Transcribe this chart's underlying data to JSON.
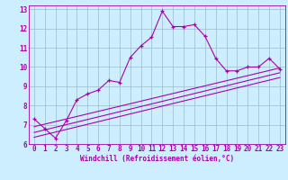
{
  "xlabel": "Windchill (Refroidissement éolien,°C)",
  "bg_color": "#cceeff",
  "line_color": "#aa00aa",
  "grid_color": "#99bbcc",
  "xlim": [
    -0.5,
    23.5
  ],
  "ylim": [
    6,
    13.2
  ],
  "xticks": [
    0,
    1,
    2,
    3,
    4,
    5,
    6,
    7,
    8,
    9,
    10,
    11,
    12,
    13,
    14,
    15,
    16,
    17,
    18,
    19,
    20,
    21,
    22,
    23
  ],
  "yticks": [
    6,
    7,
    8,
    9,
    10,
    11,
    12,
    13
  ],
  "main_x": [
    0,
    1,
    2,
    3,
    4,
    5,
    6,
    7,
    8,
    9,
    10,
    11,
    12,
    13,
    14,
    15,
    16,
    17,
    18,
    19,
    20,
    21,
    22,
    23
  ],
  "main_y": [
    7.3,
    6.8,
    6.3,
    7.2,
    8.3,
    8.6,
    8.8,
    9.3,
    9.2,
    10.5,
    11.1,
    11.55,
    12.9,
    12.1,
    12.1,
    12.2,
    11.6,
    10.45,
    9.8,
    9.8,
    10.0,
    10.0,
    10.45,
    9.9
  ],
  "line1_y": [
    6.35,
    9.45
  ],
  "line2_y": [
    6.6,
    9.7
  ],
  "line3_y": [
    6.9,
    9.95
  ],
  "tick_fontsize": 5.5,
  "xlabel_fontsize": 5.5
}
